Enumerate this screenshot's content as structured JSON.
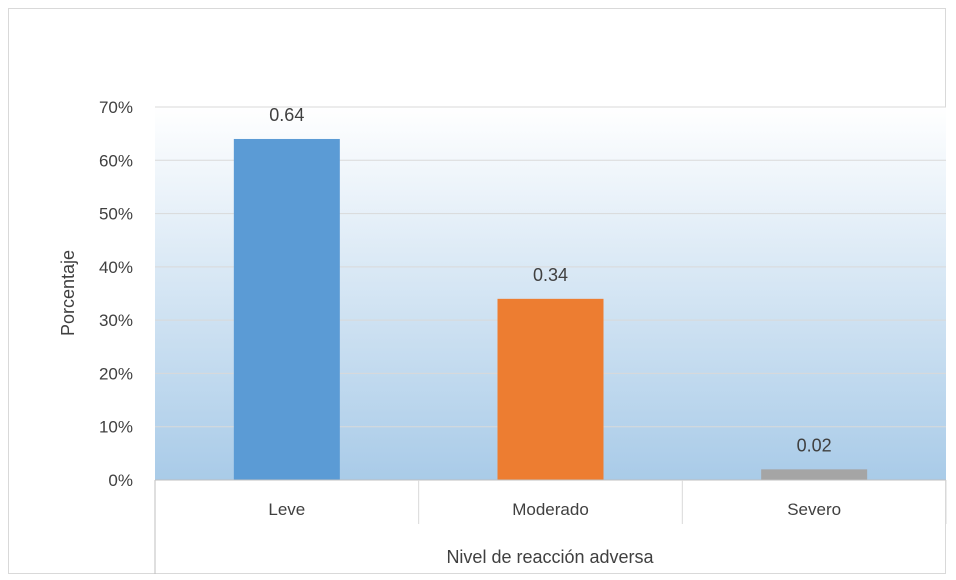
{
  "chart_data": {
    "type": "bar",
    "title": "",
    "xlabel": "Nivel de reacción adversa",
    "ylabel": "Porcentaje",
    "categories": [
      "Leve",
      "Moderado",
      "Severo"
    ],
    "values": [
      0.64,
      0.34,
      0.02
    ],
    "data_labels": [
      "0.64",
      "0.34",
      "0.02"
    ],
    "bar_colors": [
      "#5b9bd5",
      "#ed7d31",
      "#a5a5a5"
    ],
    "ylim": [
      0,
      0.7
    ],
    "yticks": [
      0,
      0.1,
      0.2,
      0.3,
      0.4,
      0.5,
      0.6,
      0.7
    ],
    "ytick_labels": [
      "0%",
      "10%",
      "20%",
      "30%",
      "40%",
      "50%",
      "60%",
      "70%"
    ],
    "grid": true,
    "legend": "none",
    "plot_background": "gradient white to light blue"
  }
}
